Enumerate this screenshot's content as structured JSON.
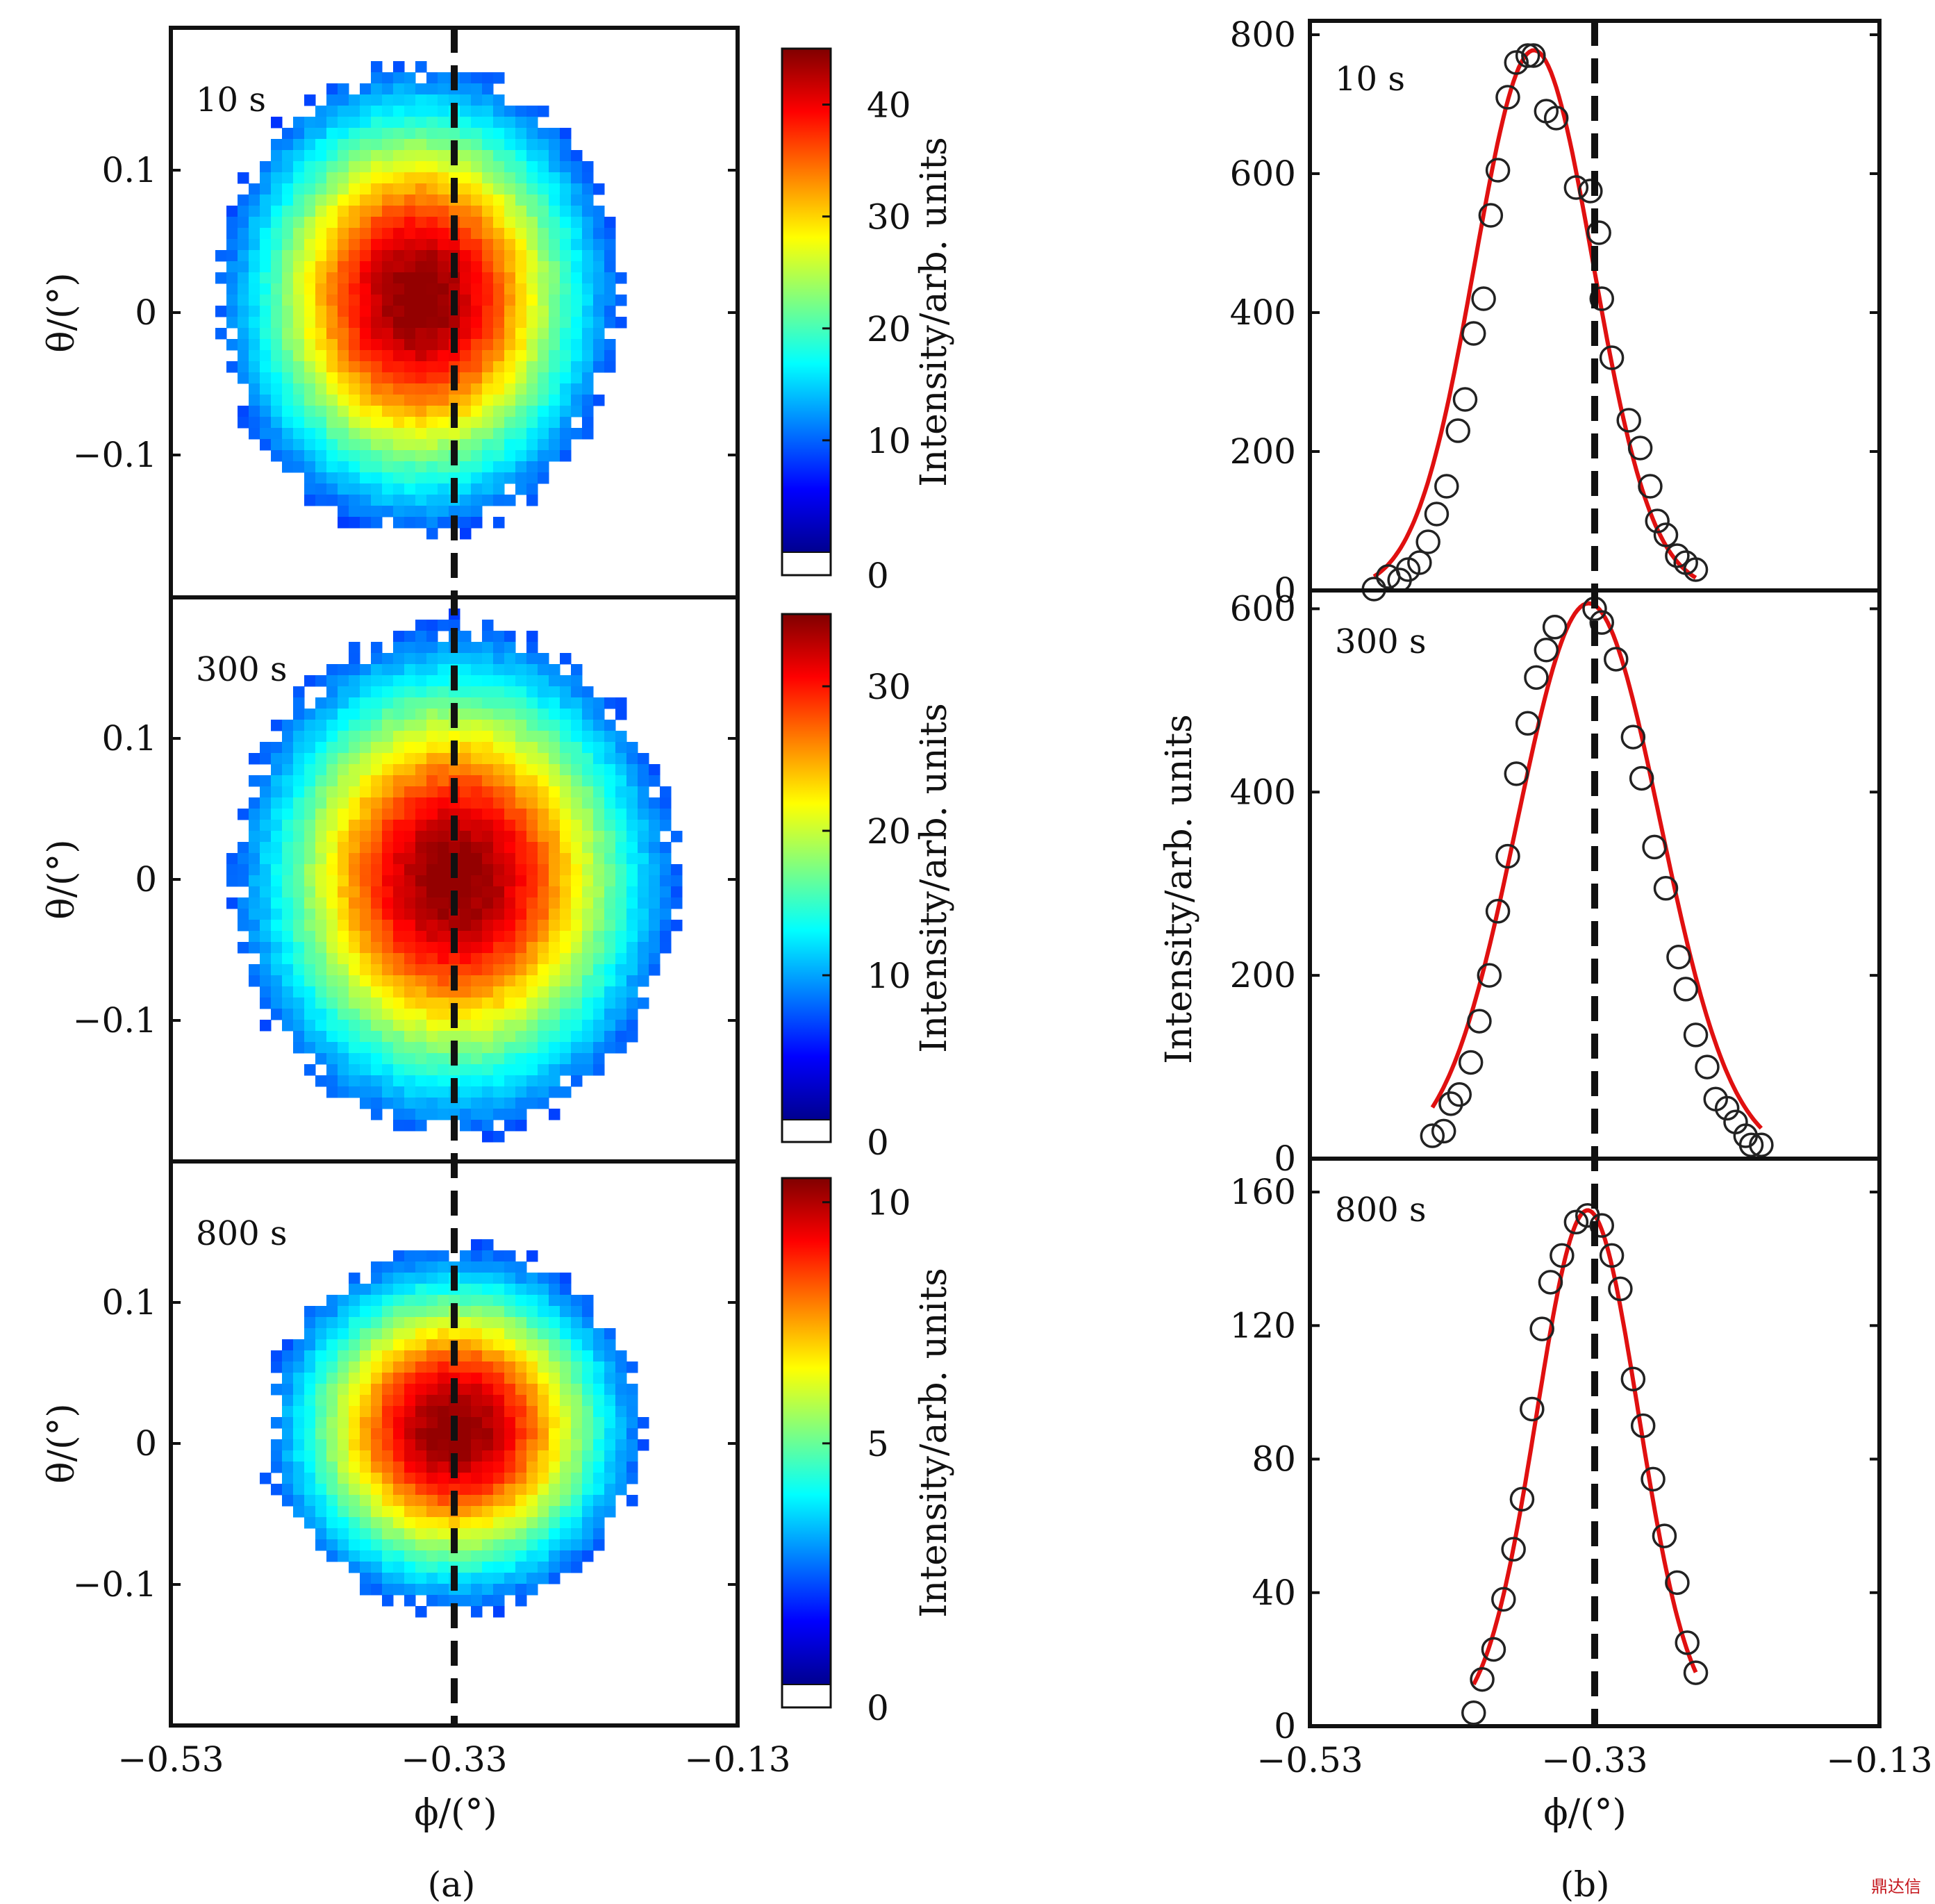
{
  "watermark": "鼎达信",
  "chart_data": [
    {
      "type": "heatmap",
      "sublabel": "(a)",
      "xlabel": "ϕ/(°)",
      "ylabel": "θ/(°)",
      "xlim": [
        -0.53,
        -0.13
      ],
      "ylim": [
        -0.2,
        0.2
      ],
      "xticks": [
        "−0.53",
        "−0.33",
        "−0.13"
      ],
      "yticks": [
        "0.1",
        "0",
        "−0.1"
      ],
      "ytick_values": [
        0.1,
        0,
        -0.1
      ],
      "dashed_line_x": -0.33,
      "colormap": "jet",
      "colorbar_label": "Intensity/arb. units",
      "panels": [
        {
          "label": "10 s",
          "center": [
            -0.355,
            0.01
          ],
          "cb_max": 45,
          "cb_ticks": [
            0,
            10,
            20,
            30,
            40
          ],
          "cb_tick_labels": [
            "0",
            "10",
            "20",
            "30",
            "40"
          ]
        },
        {
          "label": "300 s",
          "center": [
            -0.33,
            0.0
          ],
          "cb_max": 35,
          "cb_ticks": [
            0,
            10,
            20,
            30
          ],
          "cb_tick_labels": [
            "0",
            "10",
            "20",
            "30"
          ]
        },
        {
          "label": "800 s",
          "center": [
            -0.33,
            0.01
          ],
          "cb_max": 10.5,
          "cb_ticks": [
            0,
            5,
            10
          ],
          "cb_tick_labels": [
            "0",
            "5",
            "10"
          ]
        }
      ]
    },
    {
      "type": "scatter",
      "sublabel": "(b)",
      "xlabel": "ϕ/(°)",
      "ylabel": "Intensity/arb. units",
      "xlim": [
        -0.53,
        -0.13
      ],
      "xticks": [
        "−0.53",
        "−0.33",
        "−0.13"
      ],
      "dashed_line_x": -0.33,
      "fit_color": "#e01010",
      "panels": [
        {
          "label": "10 s",
          "ylim": [
            0,
            820
          ],
          "yticks": [
            0,
            200,
            400,
            600,
            800
          ],
          "ytick_labels": [
            "0",
            "200",
            "400",
            "600",
            "800"
          ],
          "x": [
            -0.485,
            -0.475,
            -0.467,
            -0.461,
            -0.453,
            -0.447,
            -0.441,
            -0.434,
            -0.426,
            -0.421,
            -0.415,
            -0.408,
            -0.403,
            -0.398,
            -0.391,
            -0.385,
            -0.377,
            -0.373,
            -0.364,
            -0.357,
            -0.343,
            -0.333,
            -0.327,
            -0.325,
            -0.318,
            -0.306,
            -0.298,
            -0.291,
            -0.286,
            -0.28,
            -0.272,
            -0.266,
            -0.259
          ],
          "y": [
            2,
            20,
            15,
            30,
            40,
            70,
            110,
            150,
            230,
            275,
            370,
            420,
            540,
            605,
            710,
            760,
            770,
            770,
            690,
            680,
            580,
            575,
            515,
            420,
            335,
            245,
            205,
            150,
            100,
            80,
            50,
            40,
            30
          ]
        },
        {
          "label": "300 s",
          "ylim": [
            0,
            620
          ],
          "yticks": [
            0,
            200,
            400,
            600
          ],
          "ytick_labels": [
            "0",
            "200",
            "400",
            "600"
          ],
          "x": [
            -0.444,
            -0.436,
            -0.431,
            -0.425,
            -0.417,
            -0.411,
            -0.404,
            -0.398,
            -0.391,
            -0.385,
            -0.377,
            -0.371,
            -0.364,
            -0.358,
            -0.33,
            -0.325,
            -0.315,
            -0.303,
            -0.297,
            -0.288,
            -0.28,
            -0.271,
            -0.266,
            -0.259,
            -0.251,
            -0.245,
            -0.237,
            -0.231,
            -0.224,
            -0.22,
            -0.213
          ],
          "y": [
            25,
            30,
            60,
            70,
            105,
            150,
            200,
            270,
            330,
            420,
            475,
            525,
            555,
            580,
            600,
            585,
            545,
            460,
            415,
            340,
            295,
            220,
            185,
            135,
            100,
            65,
            55,
            40,
            25,
            15,
            15
          ]
        },
        {
          "label": "800 s",
          "ylim": [
            0,
            170
          ],
          "yticks": [
            0,
            40,
            80,
            120,
            160
          ],
          "ytick_labels": [
            "0",
            "40",
            "80",
            "120",
            "160"
          ],
          "x": [
            -0.415,
            -0.409,
            -0.401,
            -0.394,
            -0.387,
            -0.381,
            -0.374,
            -0.367,
            -0.361,
            -0.353,
            -0.343,
            -0.335,
            -0.325,
            -0.318,
            -0.312,
            -0.303,
            -0.296,
            -0.289,
            -0.281,
            -0.272,
            -0.265,
            -0.259
          ],
          "y": [
            4,
            14,
            23,
            38,
            53,
            68,
            95,
            119,
            133,
            141,
            151,
            153,
            150,
            141,
            131,
            104,
            90,
            74,
            57,
            43,
            25,
            16
          ]
        }
      ]
    }
  ]
}
